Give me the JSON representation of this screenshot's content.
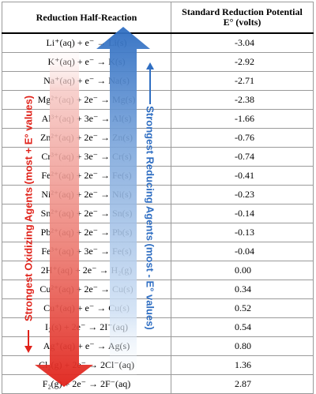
{
  "header": {
    "col1": "Reduction Half-Reaction",
    "col2_line1": "Standard Reduction Potential",
    "col2_line2": "E° (volts)"
  },
  "rows": [
    {
      "reaction": "Li⁺(aq) + e⁻ → Li(s)",
      "potential": "-3.04"
    },
    {
      "reaction": "K⁺(aq) + e⁻ → K(s)",
      "potential": "-2.92"
    },
    {
      "reaction": "Na⁺(aq) + e⁻ → Na(s)",
      "potential": "-2.71"
    },
    {
      "reaction": "Mg²⁺(aq) + 2e⁻ → Mg(s)",
      "potential": "-2.38"
    },
    {
      "reaction": "Al³⁺(aq) + 3e⁻ → Al(s)",
      "potential": "-1.66"
    },
    {
      "reaction": "Zn²⁺(aq) + 2e⁻ → Zn(s)",
      "potential": "-0.76"
    },
    {
      "reaction": "Cr³⁺(aq) + 3e⁻ → Cr(s)",
      "potential": "-0.74"
    },
    {
      "reaction": "Fe²⁺(aq) + 2e⁻ → Fe(s)",
      "potential": "-0.41"
    },
    {
      "reaction": "Ni²⁺(aq) + 2e⁻ → Ni(s)",
      "potential": "-0.23"
    },
    {
      "reaction": "Sn²⁺(aq) + 2e⁻ → Sn(s)",
      "potential": "-0.14"
    },
    {
      "reaction": "Pb²⁺(aq) + 2e⁻ → Pb(s)",
      "potential": "-0.13"
    },
    {
      "reaction": "Fe³⁺(aq) + 3e⁻ → Fe(s)",
      "potential": "-0.04"
    },
    {
      "reaction": "2H⁺(aq) + 2e⁻ → H₂(g)",
      "potential": "0.00"
    },
    {
      "reaction": "Cu²⁺(aq) + 2e⁻ → Cu(s)",
      "potential": "0.34"
    },
    {
      "reaction": "Cu⁺(aq) + e⁻ → Cu(s)",
      "potential": "0.52"
    },
    {
      "reaction": "I₂(s) + 2e⁻ → 2I⁻(aq)",
      "potential": "0.54"
    },
    {
      "reaction": "Ag⁺(aq) + e⁻ → Ag(s)",
      "potential": "0.80"
    },
    {
      "reaction": "Cl₂(g) + 2e⁻ → 2Cl⁻(aq)",
      "potential": "1.36"
    },
    {
      "reaction": "F₂(g) + 2e⁻ → 2F⁻(aq)",
      "potential": "2.87"
    }
  ],
  "oxidizing_label": "Strongest Oxidizing Agents (most + E° values)",
  "reducing_label": "Strongest Reducing Agents (most - E° values)",
  "colors": {
    "oxidizing_arrow": "#e0221a",
    "reducing_arrow": "#2f6ec2",
    "grid": "#9a9a9a"
  }
}
